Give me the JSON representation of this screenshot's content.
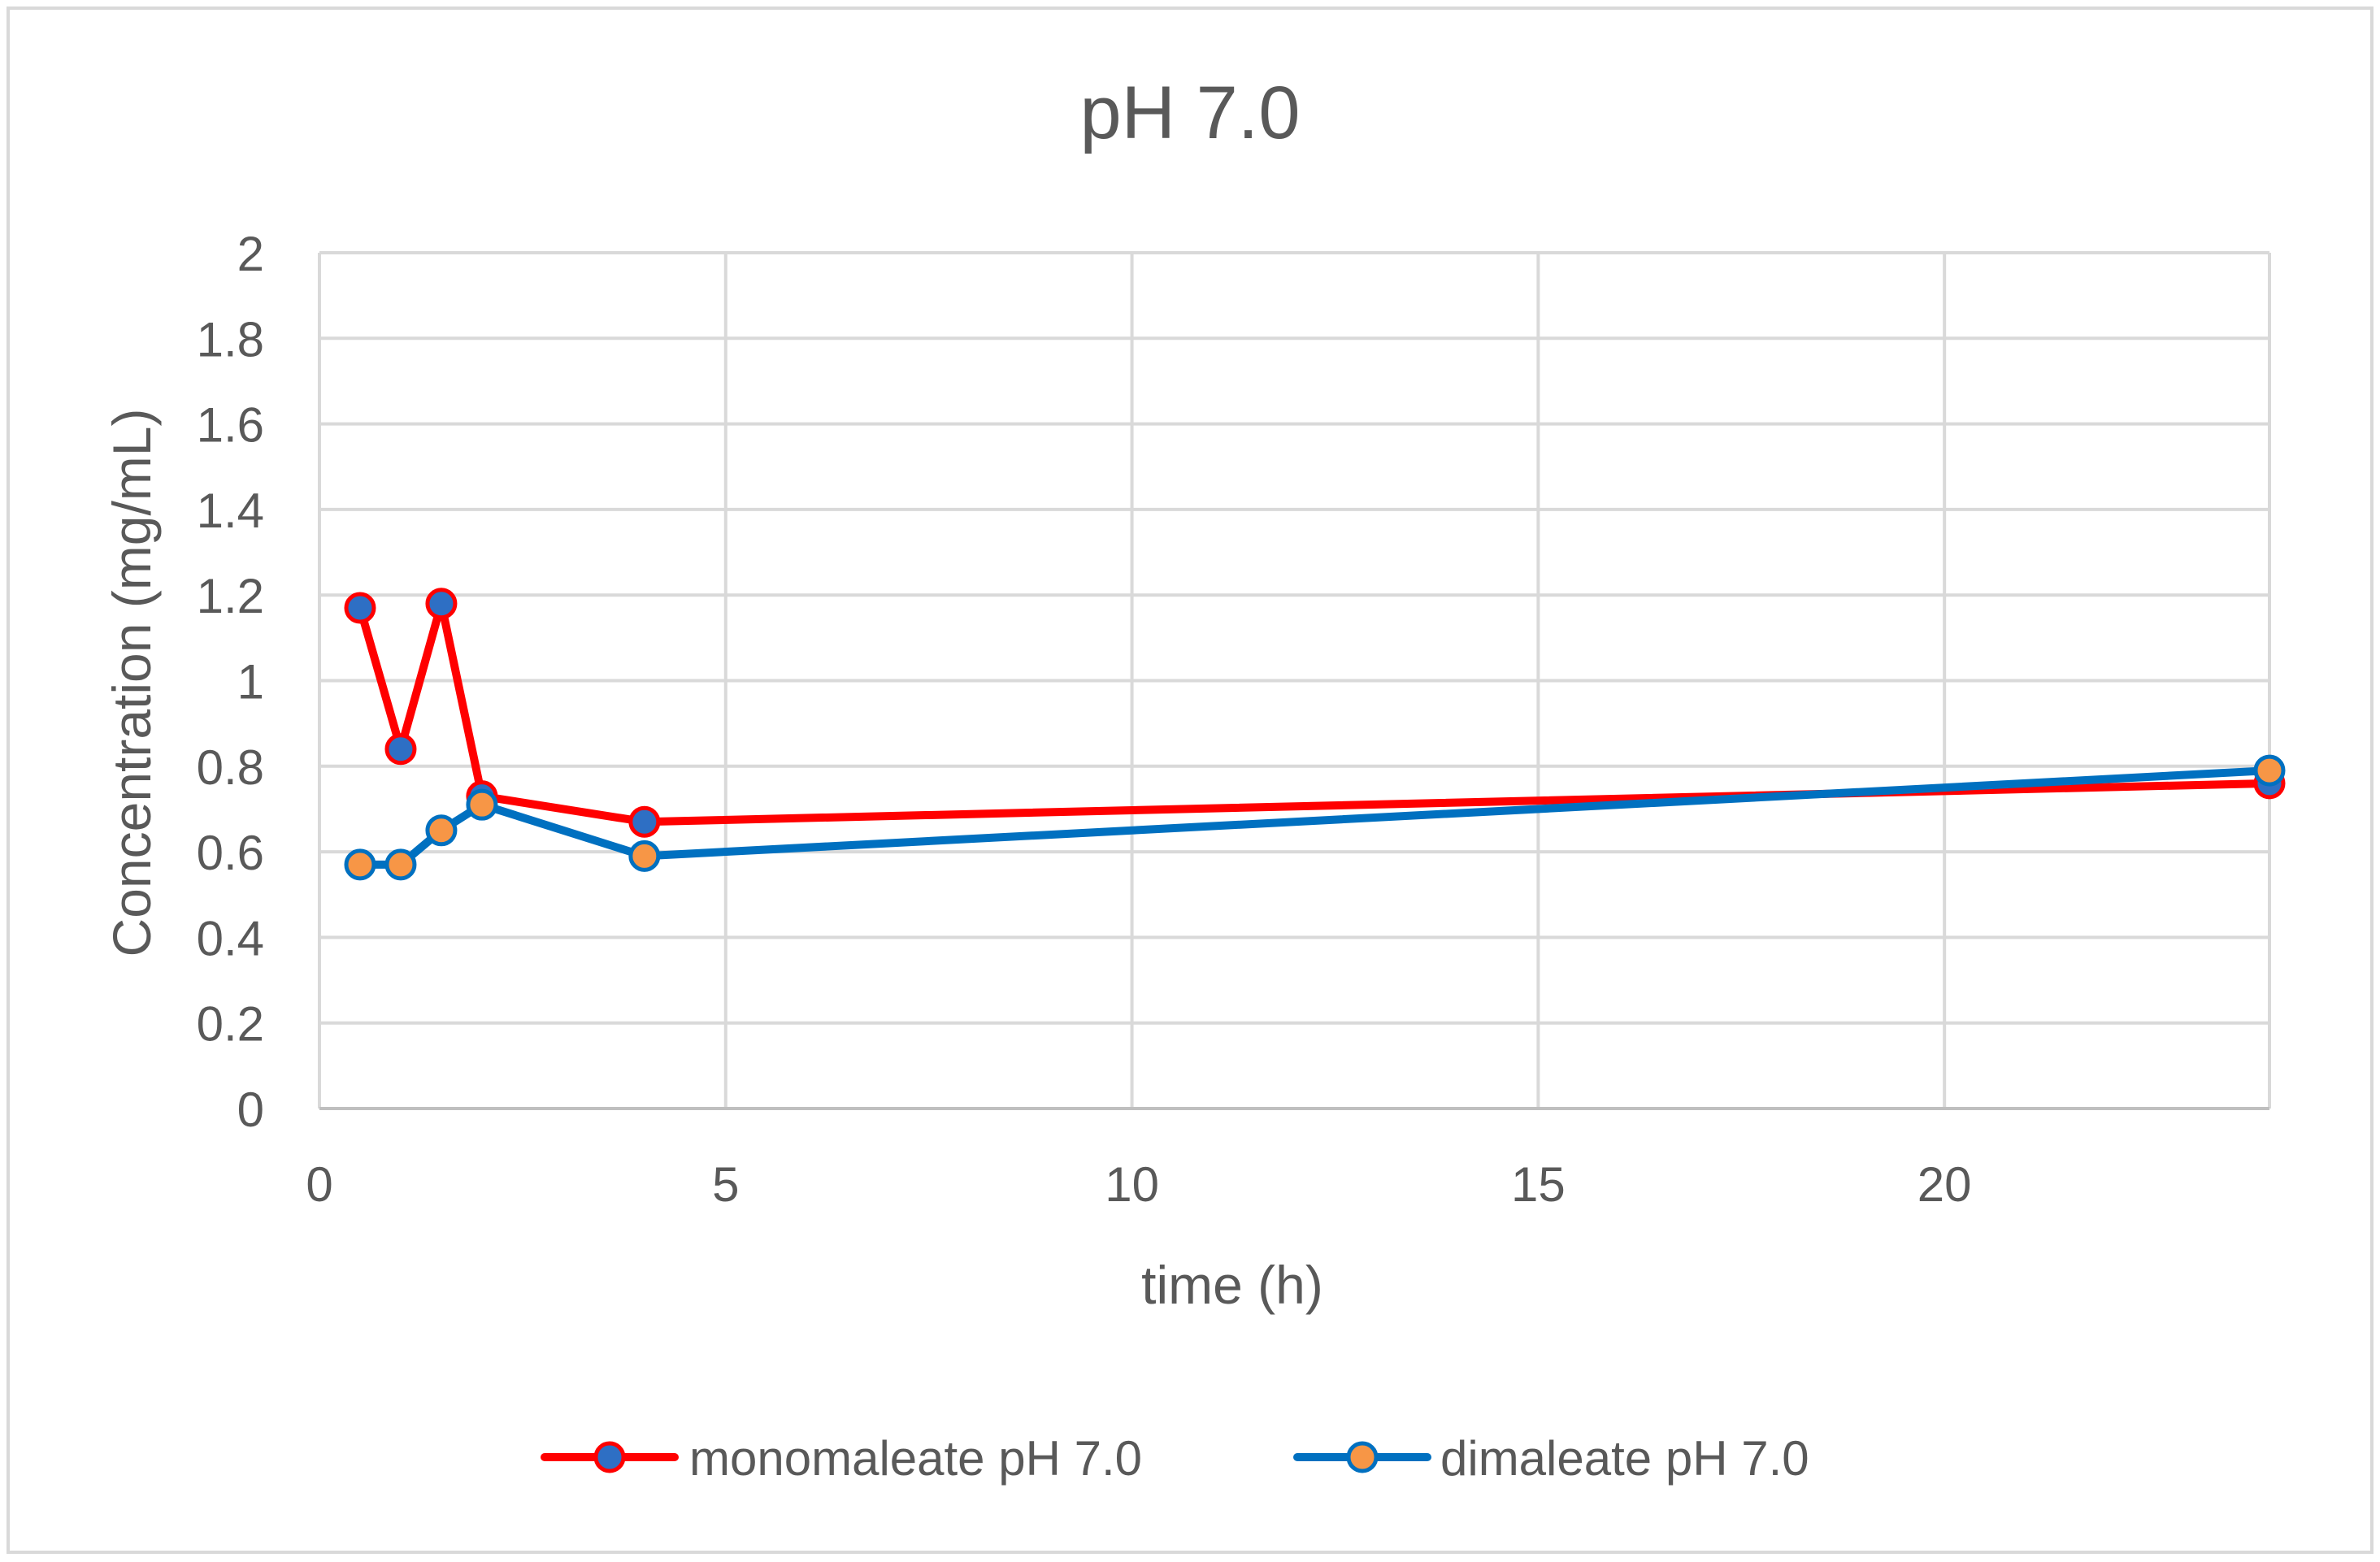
{
  "chart_data": {
    "type": "line",
    "title": "pH 7.0",
    "xlabel": "time (h)",
    "ylabel": "Concentration (mg/mL)",
    "xlim": [
      0,
      24
    ],
    "ylim": [
      0,
      2
    ],
    "x_ticks": [
      0,
      5,
      10,
      15,
      20
    ],
    "x_tick_labels": [
      "0",
      "5",
      "10",
      "15",
      "20"
    ],
    "y_ticks": [
      0,
      0.2,
      0.4,
      0.6,
      0.8,
      1.0,
      1.2,
      1.4,
      1.6,
      1.8,
      2.0
    ],
    "y_tick_labels": [
      "0",
      "0.2",
      "0.4",
      "0.6",
      "0.8",
      "1",
      "1.2",
      "1.4",
      "1.6",
      "1.8",
      "2"
    ],
    "grid": true,
    "legend_position": "bottom",
    "series": [
      {
        "name": "monomaleate pH 7.0",
        "line_color": "#ff0000",
        "marker_color": "#2e6fc4",
        "x": [
          0.5,
          1,
          1.5,
          2,
          4,
          24
        ],
        "y": [
          1.17,
          0.84,
          1.18,
          0.73,
          0.67,
          0.76
        ]
      },
      {
        "name": "dimaleate pH 7.0",
        "line_color": "#0070c0",
        "marker_color": "#f79646",
        "x": [
          0.5,
          1,
          1.5,
          2,
          4,
          24
        ],
        "y": [
          0.57,
          0.57,
          0.65,
          0.71,
          0.59,
          0.79
        ]
      }
    ]
  }
}
